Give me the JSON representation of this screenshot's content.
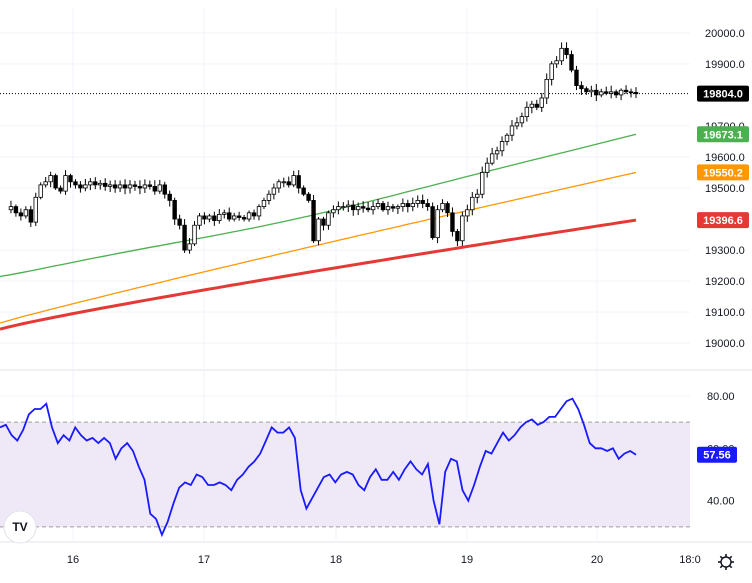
{
  "chart_data": [
    {
      "type": "candlestick",
      "panel": "price",
      "ylim": [
        18920,
        20080
      ],
      "y_ticks": [
        "20000.0",
        "19900.0",
        "19700.0",
        "19600.0",
        "19500.0",
        "19300.0",
        "19200.0",
        "19100.0",
        "19000.0"
      ],
      "x_ticks": [
        "16",
        "17",
        "18",
        "19",
        "20",
        "18:0"
      ],
      "current_price": {
        "label": "19804.0",
        "value": 19804,
        "color": "#000000",
        "line": "dotted"
      },
      "candle_colors": {
        "up": "#ffffff",
        "down": "#000000",
        "wick": "#000000"
      },
      "candles_close": [
        19430,
        19440,
        19420,
        19410,
        19430,
        19390,
        19470,
        19510,
        19520,
        19540,
        19500,
        19490,
        19540,
        19520,
        19510,
        19500,
        19510,
        19520,
        19510,
        19515,
        19505,
        19510,
        19500,
        19510,
        19500,
        19510,
        19505,
        19500,
        19510,
        19505,
        19490,
        19510,
        19480,
        19460,
        19400,
        19380,
        19300,
        19320,
        19380,
        19410,
        19400,
        19410,
        19395,
        19415,
        19420,
        19400,
        19410,
        19405,
        19400,
        19420,
        19410,
        19440,
        19460,
        19480,
        19500,
        19520,
        19520,
        19510,
        19540,
        19500,
        19480,
        19460,
        19330,
        19400,
        19380,
        19420,
        19430,
        19440,
        19440,
        19445,
        19430,
        19440,
        19435,
        19430,
        19440,
        19450,
        19430,
        19440,
        19435,
        19440,
        19450,
        19440,
        19450,
        19460,
        19450,
        19440,
        19340,
        19430,
        19450,
        19420,
        19360,
        19330,
        19410,
        19430,
        19470,
        19480,
        19550,
        19580,
        19610,
        19620,
        19650,
        19670,
        19700,
        19710,
        19730,
        19760,
        19770,
        19760,
        19790,
        19850,
        19900,
        19910,
        19950,
        19930,
        19880,
        19830,
        19820,
        19810,
        19815,
        19800,
        19810,
        19805,
        19810,
        19800,
        19815,
        19810,
        19808,
        19804
      ],
      "moving_averages": [
        {
          "color": "#4caf50",
          "start": 19215,
          "end": 19673.1,
          "label": "19673.1"
        },
        {
          "color": "#ff9800",
          "start": 19065,
          "end": 19550.2,
          "label": "19550.2"
        },
        {
          "color": "#e53935",
          "start": 19045,
          "end": 19396.6,
          "label": "19396.6"
        }
      ]
    },
    {
      "type": "line",
      "panel": "rsi",
      "ylim": [
        25,
        88
      ],
      "y_ticks": [
        "80.00",
        "60.00",
        "40.00"
      ],
      "band": {
        "upper": 70,
        "lower": 30,
        "fill": "#efe9f7"
      },
      "series": [
        {
          "color": "#1a1aff",
          "label": "57.56",
          "values": [
            68,
            69,
            65,
            63,
            67,
            73,
            75,
            75,
            77,
            68,
            62,
            65,
            63,
            68,
            65,
            63,
            64,
            62,
            64,
            62,
            56,
            60,
            62,
            59,
            53,
            48,
            35,
            33,
            27,
            32,
            39,
            45,
            47,
            46,
            50,
            49,
            46,
            46,
            47,
            46,
            44,
            48,
            50,
            53,
            55,
            58,
            63,
            68,
            66,
            66,
            68,
            64,
            44,
            37,
            41,
            45,
            49,
            50,
            47,
            50,
            51,
            50,
            46,
            44,
            49,
            52,
            48,
            48,
            51,
            48,
            52,
            55,
            52,
            50,
            54,
            40,
            31,
            51,
            56,
            55,
            44,
            40,
            46,
            53,
            59,
            58,
            62,
            66,
            63,
            65,
            68,
            70,
            71,
            69,
            70,
            72,
            72,
            75,
            78,
            79,
            75,
            69,
            62,
            60,
            60,
            59,
            60,
            56,
            58,
            59,
            57.56
          ]
        }
      ]
    }
  ],
  "logo_text": "TV",
  "gear_icon": "gear-icon",
  "colors": {
    "grid": "#f0f3fa",
    "axis_text": "#131722",
    "band_line": "#9e9e9e"
  }
}
